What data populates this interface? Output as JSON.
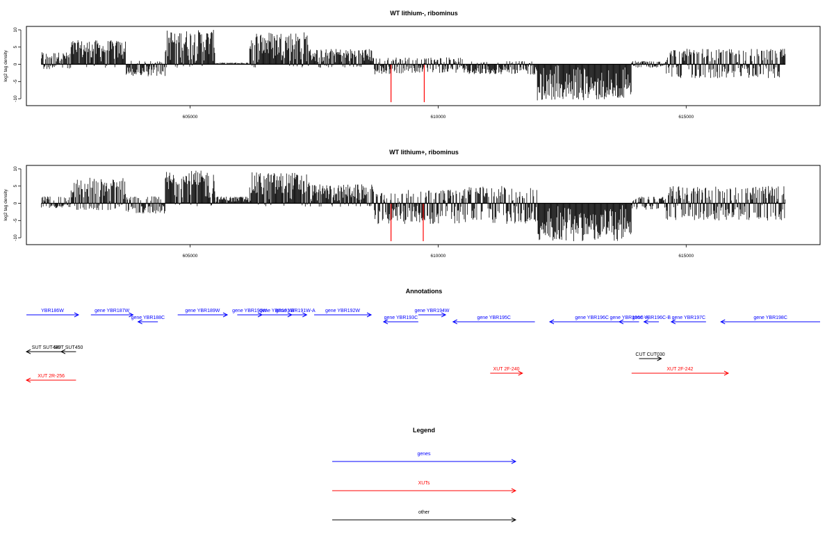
{
  "chart_data": [
    {
      "type": "bar",
      "title": "WT lithium-, ribominus",
      "xlabel": "",
      "ylabel": "log2 tag density",
      "xlim": [
        601700,
        617700
      ],
      "ylim": [
        -12,
        11
      ],
      "yticks": [
        10,
        5,
        0,
        -5,
        -10
      ],
      "xticks": [
        605000,
        610000,
        615000
      ],
      "bar_color": "#000000",
      "highlight_color": "#ff0000",
      "data_start": 602000,
      "data_end": 617000,
      "regions": [
        {
          "start": 602000,
          "end": 602600,
          "lo": -1.5,
          "hi": 3.5
        },
        {
          "start": 602600,
          "end": 603700,
          "lo": -1,
          "hi": 7
        },
        {
          "start": 603700,
          "end": 604500,
          "lo": -3.5,
          "hi": 1
        },
        {
          "start": 604500,
          "end": 605500,
          "lo": -1,
          "hi": 10
        },
        {
          "start": 605500,
          "end": 606200,
          "lo": 0,
          "hi": 0.5
        },
        {
          "start": 606200,
          "end": 607400,
          "lo": -1,
          "hi": 9.5
        },
        {
          "start": 607400,
          "end": 608700,
          "lo": -1,
          "hi": 4.5
        },
        {
          "start": 608700,
          "end": 609300,
          "lo": -3,
          "hi": 2
        },
        {
          "start": 609300,
          "end": 610500,
          "lo": -2.5,
          "hi": 2
        },
        {
          "start": 610500,
          "end": 612000,
          "lo": -3,
          "hi": 1
        },
        {
          "start": 612000,
          "end": 613900,
          "lo": -10.5,
          "hi": 0
        },
        {
          "start": 613900,
          "end": 614600,
          "lo": -1,
          "hi": 1
        },
        {
          "start": 614600,
          "end": 617000,
          "lo": -4,
          "hi": 4.5
        }
      ],
      "highlight_marks": [
        {
          "x": 609050,
          "y": -11
        },
        {
          "x": 609720,
          "y": -11
        }
      ]
    },
    {
      "type": "bar",
      "title": "WT lithium+, ribominus",
      "xlabel": "",
      "ylabel": "log2 tag density",
      "xlim": [
        601700,
        617700
      ],
      "ylim": [
        -12,
        11
      ],
      "yticks": [
        10,
        5,
        0,
        -5,
        -10
      ],
      "xticks": [
        605000,
        610000,
        615000
      ],
      "bar_color": "#000000",
      "highlight_color": "#ff0000",
      "data_start": 602000,
      "data_end": 617000,
      "regions": [
        {
          "start": 602000,
          "end": 602600,
          "lo": -1.5,
          "hi": 2
        },
        {
          "start": 602600,
          "end": 603700,
          "lo": -2,
          "hi": 7.5
        },
        {
          "start": 603700,
          "end": 604500,
          "lo": -3,
          "hi": 2
        },
        {
          "start": 604500,
          "end": 605500,
          "lo": -1,
          "hi": 9.5
        },
        {
          "start": 605500,
          "end": 606200,
          "lo": 0,
          "hi": 2
        },
        {
          "start": 606200,
          "end": 607400,
          "lo": -1,
          "hi": 9
        },
        {
          "start": 607400,
          "end": 608700,
          "lo": -1,
          "hi": 5.5
        },
        {
          "start": 608700,
          "end": 609300,
          "lo": -6,
          "hi": 3
        },
        {
          "start": 609300,
          "end": 610500,
          "lo": -6,
          "hi": 4
        },
        {
          "start": 610500,
          "end": 612000,
          "lo": -6,
          "hi": 5
        },
        {
          "start": 612000,
          "end": 613900,
          "lo": -11,
          "hi": 0
        },
        {
          "start": 613900,
          "end": 614600,
          "lo": -2,
          "hi": 2
        },
        {
          "start": 614600,
          "end": 617000,
          "lo": -5,
          "hi": 5
        }
      ],
      "highlight_marks": [
        {
          "x": 609050,
          "y": -11
        },
        {
          "x": 609700,
          "y": -11
        }
      ]
    }
  ],
  "annotations": {
    "title": "Annotations",
    "genes": [
      {
        "label": "YBR186W",
        "start": 601700,
        "end": 602750,
        "dir": "+",
        "row": 0
      },
      {
        "label": "gene YBR187W",
        "start": 603000,
        "end": 603850,
        "dir": "+",
        "row": 0
      },
      {
        "label": "gene YBR188C",
        "start": 603950,
        "end": 604350,
        "dir": "-",
        "row": 1
      },
      {
        "label": "gene YBR189W",
        "start": 604750,
        "end": 605750,
        "dir": "+",
        "row": 0
      },
      {
        "label": "gene YBR190W",
        "start": 605950,
        "end": 606450,
        "dir": "+",
        "row": 0
      },
      {
        "label": "gene YBR191W",
        "start": 606450,
        "end": 607050,
        "dir": "+",
        "row": 0
      },
      {
        "label": "gene YBR191W-A",
        "start": 606900,
        "end": 607350,
        "dir": "+",
        "row": 0
      },
      {
        "label": "gene YBR192W",
        "start": 607500,
        "end": 608650,
        "dir": "+",
        "row": 0
      },
      {
        "label": "gene YBR193C",
        "start": 608900,
        "end": 609600,
        "dir": "-",
        "row": 1
      },
      {
        "label": "gene YBR194W",
        "start": 609600,
        "end": 610150,
        "dir": "+",
        "row": 0
      },
      {
        "label": "gene YBR195C",
        "start": 610300,
        "end": 611950,
        "dir": "-",
        "row": 1
      },
      {
        "label": "gene YBR196C",
        "start": 612250,
        "end": 613950,
        "dir": "-",
        "row": 1
      },
      {
        "label": "gene YBR196C-A",
        "start": 613650,
        "end": 614050,
        "dir": "-",
        "row": 1
      },
      {
        "label": "gene YBR196C-B",
        "start": 614150,
        "end": 614450,
        "dir": "-",
        "row": 1
      },
      {
        "label": "gene YBR197C",
        "start": 614700,
        "end": 615400,
        "dir": "-",
        "row": 1
      },
      {
        "label": "gene YBR198C",
        "start": 615700,
        "end": 617700,
        "dir": "-",
        "row": 1
      }
    ],
    "others": [
      {
        "label": "SUT SUT449",
        "start": 601700,
        "end": 602500,
        "dir": "-"
      },
      {
        "label": "SUT SUT450",
        "start": 602400,
        "end": 602700,
        "dir": "-"
      },
      {
        "label": "CUT CUT030",
        "start": 614050,
        "end": 614500,
        "dir": "+"
      }
    ],
    "xuts": [
      {
        "label": "XUT 2R-256",
        "start": 601700,
        "end": 602700,
        "dir": "-"
      },
      {
        "label": "XUT 2F-240",
        "start": 611050,
        "end": 611700,
        "dir": "+"
      },
      {
        "label": "XUT 2F-242",
        "start": 613900,
        "end": 615850,
        "dir": "+"
      }
    ]
  },
  "legend": {
    "title": "Legend",
    "items": [
      {
        "label": "genes",
        "color": "#0000ff"
      },
      {
        "label": "XUTs",
        "color": "#ff0000"
      },
      {
        "label": "other",
        "color": "#000000"
      }
    ]
  },
  "colors": {
    "genes": "#0000ff",
    "xuts": "#ff0000",
    "other": "#000000"
  }
}
